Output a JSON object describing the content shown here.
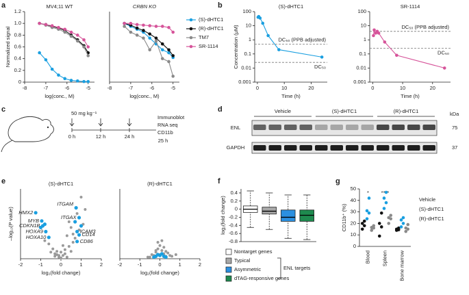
{
  "panel_labels": [
    "a",
    "b",
    "c",
    "d",
    "e",
    "f",
    "g"
  ],
  "diagram": {
    "dose": "50 mg kg⁻¹",
    "times": [
      "0 h",
      "12 h",
      "24 h",
      "25 h"
    ],
    "readouts": [
      "Immunoblot",
      "RNA seq",
      "CD11b"
    ]
  },
  "blot": {
    "groups": [
      "Vehicle",
      "(S)-dHTC1",
      "(R)-dHTC1"
    ],
    "rows": [
      "ENL",
      "GAPDH"
    ],
    "unit": "kDa",
    "markers": [
      "75",
      "37"
    ]
  },
  "chart_data": [
    {
      "type": "line",
      "title": "MV4;11 WT",
      "x_label": "log(conc., M)",
      "y_label": "Normalized signal",
      "x": [
        -7.3,
        -7,
        -6.7,
        -6.4,
        -6.1,
        -5.8,
        -5.5,
        -5.2,
        -5
      ],
      "xlim": [
        -8,
        -4.7
      ],
      "xticks": [
        -8,
        -7,
        -6,
        -5
      ],
      "ylim": [
        0,
        1.2
      ],
      "yticks": [
        0,
        0.2,
        0.4,
        0.6,
        0.8,
        {
          "value": 1,
          "label": "1.0"
        },
        1.2
      ],
      "series": [
        {
          "name": "(S)-dHTC1",
          "color": "#1a9fe0",
          "values": [
            0.5,
            0.38,
            0.22,
            0.12,
            0.06,
            0.03,
            0.02,
            0.01,
            0.01
          ]
        },
        {
          "name": "(R)-dHTC1",
          "color": "#111111",
          "values": [
            1.0,
            0.98,
            0.95,
            0.92,
            0.88,
            0.8,
            0.72,
            0.62,
            0.5
          ]
        },
        {
          "name": "TM7",
          "color": "#8a8a8a",
          "values": [
            1.0,
            0.97,
            0.93,
            0.9,
            0.85,
            0.78,
            0.7,
            0.6,
            0.45
          ]
        },
        {
          "name": "SR-1114",
          "color": "#d6549a",
          "values": [
            1.0,
            0.98,
            0.96,
            0.93,
            0.9,
            0.85,
            0.8,
            0.72,
            0.6
          ]
        }
      ]
    },
    {
      "type": "line",
      "title": "CRBN KO",
      "x_label": "log(conc., M)",
      "legend": "outside right",
      "x": [
        -7.3,
        -7,
        -6.7,
        -6.4,
        -6.1,
        -5.8,
        -5.5,
        -5.2,
        -5
      ],
      "xlim": [
        -8,
        -4.7
      ],
      "xticks": [
        -8,
        -7,
        -6,
        -5
      ],
      "ylim": [
        0,
        1.2
      ],
      "series": [
        {
          "name": "(S)-dHTC1",
          "color": "#1a9fe0",
          "values": [
            1.0,
            0.95,
            0.9,
            0.85,
            0.75,
            0.65,
            0.55,
            0.5,
            0.42
          ]
        },
        {
          "name": "(R)-dHTC1",
          "color": "#111111",
          "values": [
            1.0,
            0.97,
            0.92,
            0.88,
            0.82,
            0.75,
            0.65,
            0.55,
            0.45
          ]
        },
        {
          "name": "TM7",
          "color": "#8a8a8a",
          "values": [
            0.95,
            0.85,
            0.8,
            0.75,
            0.55,
            0.7,
            0.4,
            0.35,
            0.1
          ]
        },
        {
          "name": "SR-1114",
          "color": "#d6549a",
          "values": [
            1.0,
            1.0,
            0.98,
            0.97,
            0.96,
            0.95,
            0.95,
            0.93,
            0.85
          ]
        }
      ]
    },
    {
      "type": "line",
      "title": "(S)-dHTC1",
      "x_label": "Time (h)",
      "y_label": "Concentration (μM)",
      "ylog": true,
      "x": [
        0.25,
        0.5,
        1,
        2,
        4,
        8,
        24
      ],
      "xlim": [
        -1,
        26
      ],
      "xticks": [
        0,
        10,
        20
      ],
      "ylim": [
        0.001,
        100
      ],
      "yticks": [
        0.001,
        0.01,
        0.1,
        1,
        10,
        100
      ],
      "series": [
        {
          "color": "#1a9fe0",
          "values": [
            40,
            45,
            35,
            15,
            2,
            0.2,
            0.06
          ]
        }
      ],
      "reference_lines": [
        {
          "label": "DC₅₀ (PPB adjusted)",
          "value": 0.5
        },
        {
          "label": "DC₅₀",
          "value": 0.025
        }
      ]
    },
    {
      "type": "line",
      "title": "SR-1114",
      "x_label": "Time (h)",
      "ylog": true,
      "x": [
        0.25,
        0.5,
        1,
        1.5,
        2,
        4,
        8,
        24
      ],
      "xlim": [
        -1,
        26
      ],
      "xticks": [
        0,
        10,
        20
      ],
      "ylim": [
        0.001,
        100
      ],
      "yticks": [
        0.001,
        0.01,
        0.1,
        1,
        10,
        100
      ],
      "series": [
        {
          "color": "#d6549a",
          "values": [
            2,
            5,
            3,
            4,
            3,
            0.7,
            0.08,
            0.01
          ]
        }
      ],
      "reference_lines": [
        {
          "label": "DC₅₀ (PPB adjusted)",
          "value": 4
        },
        {
          "label": "DC₅₀",
          "value": 0.25
        }
      ]
    },
    {
      "type": "scatter",
      "title": "(S)-dHTC1",
      "x_label": "log₂(fold change)",
      "y_label": "–log₁₀(P value)",
      "xlim": [
        -2,
        2
      ],
      "xticks": [
        -2,
        -1,
        0,
        1,
        2
      ],
      "ylim": [
        0,
        8.5
      ],
      "series": [
        {
          "color": "#9a9a9a",
          "x": [
            -0.3,
            -0.2,
            -0.1,
            0,
            0.1,
            0.2,
            0.3,
            -0.5,
            0.5,
            -0.4,
            0.4,
            -0.6,
            0.6,
            -0.2,
            0.2,
            0.7,
            0.9,
            1.1,
            -0.8,
            0.3,
            0.5,
            0.8,
            1.0,
            -0.3,
            0.1,
            0.6,
            1.2,
            0.4,
            -0.1,
            0.0
          ],
          "y": [
            0.3,
            0.5,
            0.2,
            0.1,
            0.4,
            0.6,
            0.2,
            0.8,
            0.9,
            1.2,
            1.5,
            1.8,
            2.0,
            0.9,
            1.1,
            2.5,
            3.5,
            4.2,
            2.2,
            2.8,
            3.8,
            5.5,
            7.5,
            0.6,
            1.6,
            3.0,
            6.0,
            4.5,
            0.4,
            0.8
          ]
        },
        {
          "color": "#1a9fe0",
          "x": [
            -1.25,
            -0.95,
            -0.9,
            -0.75,
            -0.6,
            0.75,
            0.9,
            0.8,
            0.9,
            0.8,
            -1.0,
            -0.8,
            0.7,
            1.0
          ],
          "y": [
            5.6,
            4.6,
            4.0,
            3.3,
            2.6,
            6.2,
            5.0,
            3.3,
            2.9,
            2.1,
            3.8,
            4.2,
            4.5,
            4.0
          ],
          "labels": [
            "HMX2",
            "MYB",
            "CDKN1B",
            "HOXA9",
            "HOXA10",
            "ITGAM",
            "ITGAX",
            "ICAM3",
            "CD14",
            "CD86",
            null,
            null,
            null,
            null
          ]
        }
      ]
    },
    {
      "type": "scatter",
      "title": "(R)-dHTC1",
      "x_label": "log₂(fold change)",
      "xlim": [
        -2,
        2
      ],
      "xticks": [
        -2,
        -1,
        0,
        1,
        2
      ],
      "ylim": [
        0,
        8.5
      ],
      "series": [
        {
          "color": "#9a9a9a",
          "x": [
            -0.3,
            -0.2,
            -0.1,
            0,
            0.1,
            0.2,
            0.3,
            -0.4,
            0.4,
            -0.5,
            0.5,
            0.6,
            -0.6,
            0.2,
            -0.2,
            0.8,
            0.3,
            -0.1,
            0.1,
            0.0
          ],
          "y": [
            0.4,
            0.8,
            1.2,
            1.6,
            1.0,
            0.6,
            0.3,
            0.5,
            0.7,
            0.2,
            0.4,
            0.3,
            0.2,
            1.4,
            1.0,
            0.5,
            0.9,
            2.0,
            2.2,
            0.5
          ]
        },
        {
          "color": "#1a9fe0",
          "x": [
            -0.2,
            -0.1,
            0,
            0.1,
            0.2,
            -0.3,
            0.3
          ],
          "y": [
            0.3,
            0.5,
            0.4,
            0.6,
            0.3,
            0.2,
            0.2
          ]
        }
      ]
    },
    {
      "type": "box",
      "y_label": "log₂(fold change)",
      "group_label": "ENL targets",
      "categories": [
        "Nontarget genes",
        "Typical",
        "Asymmetric",
        "dTAG-responsive genes"
      ],
      "colors": [
        "#ffffff",
        "#a8a8a8",
        "#2b8fe0",
        "#1e8a4f"
      ],
      "ylim": [
        -0.8,
        0.5
      ],
      "yticks": [
        -0.8,
        -0.6,
        -0.4,
        -0.2,
        0,
        0.2,
        0.4
      ],
      "stats": [
        {
          "min": -0.45,
          "q1": -0.08,
          "median": 0,
          "q3": 0.08,
          "max": 0.45
        },
        {
          "min": -0.5,
          "q1": -0.12,
          "median": -0.05,
          "q3": 0.05,
          "max": 0.4
        },
        {
          "min": -0.72,
          "q1": -0.3,
          "median": -0.2,
          "q3": -0.02,
          "max": 0.35
        },
        {
          "min": -0.75,
          "q1": -0.3,
          "median": -0.15,
          "q3": -0.02,
          "max": 0.35
        }
      ]
    },
    {
      "type": "dot",
      "y_label": "CD11b⁺ (%)",
      "legend": "outside right",
      "categories": [
        "Blood",
        "Spleen",
        "Bone marrow"
      ],
      "significance": [
        "*",
        "****",
        null
      ],
      "ylim": [
        0,
        50
      ],
      "yticks": [
        0,
        10,
        20,
        30,
        40,
        50
      ],
      "series": [
        {
          "name": "Vehicle",
          "color": "#111111",
          "values": [
            [
              15,
              18,
              20,
              22
            ],
            [
              9,
              17,
              20,
              29
            ],
            [
              14,
              14.5,
              15,
              16
            ]
          ]
        },
        {
          "name": "(S)-dHTC1",
          "color": "#1a9fe0",
          "values": [
            [
              24,
              29,
              31,
              42
            ],
            [
              33,
              38,
              42,
              47
            ],
            [
              17,
              20,
              23,
              25
            ]
          ]
        },
        {
          "name": "(R)-dHTC1",
          "color": "#8a8a8a",
          "values": [
            [
              14,
              16,
              16.5,
              18
            ],
            [
              20,
              24,
              25,
              27
            ],
            [
              13,
              15,
              16,
              19
            ]
          ]
        }
      ]
    }
  ]
}
